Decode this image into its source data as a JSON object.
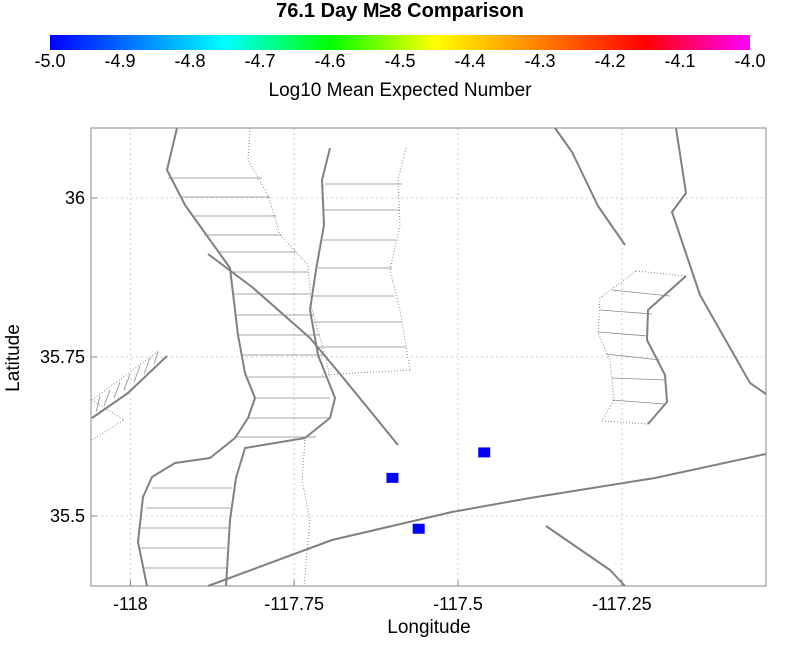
{
  "title": "76.1 Day M≥8 Comparison",
  "colorbar": {
    "label": "Log10 Mean Expected Number",
    "ticks": [
      "-5.0",
      "-4.9",
      "-4.8",
      "-4.7",
      "-4.6",
      "-4.5",
      "-4.4",
      "-4.3",
      "-4.2",
      "-4.1",
      "-4.0"
    ]
  },
  "axes": {
    "xlabel": "Longitude",
    "ylabel": "Latitude",
    "xticks": [
      "-118",
      "-117.75",
      "-117.5",
      "-117.25"
    ],
    "yticks": [
      "36",
      "35.75",
      "35.5"
    ],
    "xlim": [
      -118.06,
      -117.03
    ],
    "ylim": [
      35.39,
      36.11
    ]
  },
  "colors": {
    "fault": "#808080",
    "cell": "#0000ff",
    "grid": "#cccccc"
  },
  "chart_data": {
    "type": "scatter",
    "xlabel": "Longitude",
    "ylabel": "Latitude",
    "xlim": [
      -118.06,
      -117.03
    ],
    "ylim": [
      35.39,
      36.11
    ],
    "points": [
      {
        "lon": -117.6,
        "lat": 35.56,
        "value": -5.0
      },
      {
        "lon": -117.46,
        "lat": 35.6,
        "value": -5.0
      },
      {
        "lon": -117.56,
        "lat": 35.48,
        "value": -5.0
      }
    ]
  }
}
